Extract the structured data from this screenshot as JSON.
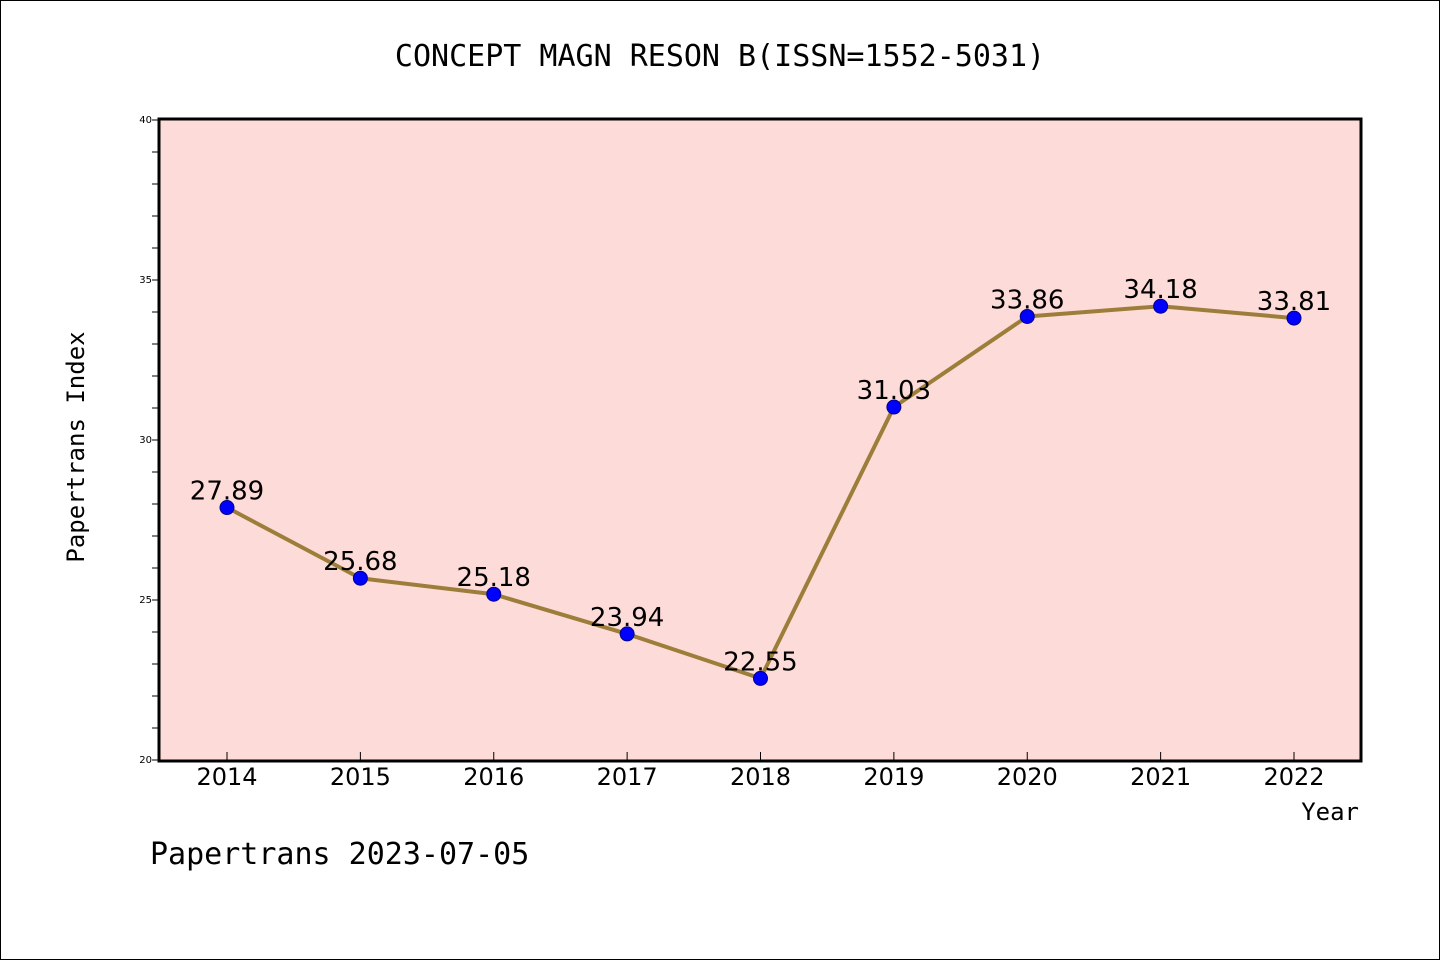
{
  "chart_data": {
    "type": "line",
    "title": "CONCEPT MAGN RESON B(ISSN=1552-5031)",
    "xlabel": "Year",
    "ylabel": "Papertrans Index",
    "categories": [
      "2014",
      "2015",
      "2016",
      "2017",
      "2018",
      "2019",
      "2020",
      "2021",
      "2022"
    ],
    "series": [
      {
        "values": [
          27.89,
          25.68,
          25.18,
          23.94,
          22.55,
          31.03,
          33.86,
          34.18,
          33.81
        ],
        "labels": [
          "27.89",
          "25.68",
          "25.18",
          "23.94",
          "22.55",
          "31.03",
          "33.86",
          "34.18",
          "33.81"
        ],
        "line_color": "#9c7e3a",
        "marker_color": "#0000ff"
      }
    ],
    "ylim": [
      20,
      40
    ],
    "yticks": [
      "20",
      "25",
      "30",
      "35",
      "40"
    ],
    "plot_background": "#fddbd8",
    "grid": false,
    "legend": "none"
  },
  "footer": {
    "text": "Papertrans 2023-07-05"
  }
}
